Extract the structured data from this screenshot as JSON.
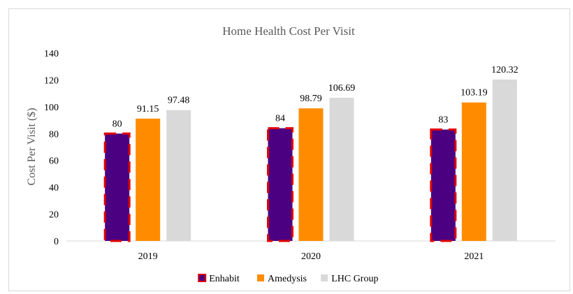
{
  "chart_data": {
    "type": "bar",
    "title": "Home Health Cost Per Visit",
    "xlabel": "",
    "ylabel": "Cost Per Visit ($)",
    "ylim": [
      0,
      140
    ],
    "yticks": [
      0,
      20,
      40,
      60,
      80,
      100,
      120,
      140
    ],
    "grid": false,
    "legend_position": "bottom",
    "categories": [
      "2019",
      "2020",
      "2021"
    ],
    "series": [
      {
        "name": "Enhabit",
        "values": [
          80,
          84,
          83
        ],
        "labels": [
          "80",
          "84",
          "83"
        ],
        "color": "#4b0082",
        "border_color": "#e00000"
      },
      {
        "name": "Amedysis",
        "values": [
          91.15,
          98.79,
          103.19
        ],
        "labels": [
          "91.15",
          "98.79",
          "103.19"
        ],
        "color": "#ff8c00"
      },
      {
        "name": "LHC Group",
        "values": [
          97.48,
          106.69,
          120.32
        ],
        "labels": [
          "97.48",
          "106.69",
          "120.32"
        ],
        "color": "#d9d9d9"
      }
    ]
  }
}
